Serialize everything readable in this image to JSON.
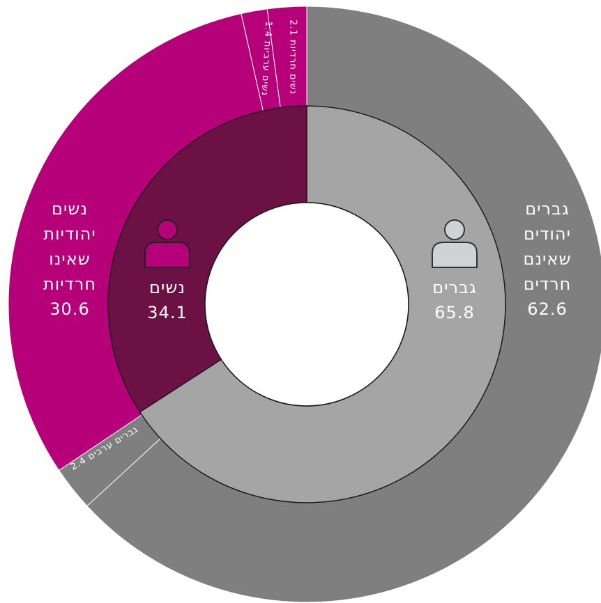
{
  "chart_data": {
    "type": "sunburst",
    "inner": [
      {
        "name": "נשים",
        "value": 34.1,
        "color": "#6b1143"
      },
      {
        "name": "גברים",
        "value": 65.8,
        "color": "#a5a5a5"
      }
    ],
    "outer": [
      {
        "name": "נשים חרדיות",
        "value": 2.1,
        "color": "#b5007a"
      },
      {
        "name": "נשים ערביות",
        "value": 1.4,
        "color": "#b5007a"
      },
      {
        "name": "נשים יהודיות שאינו חרדיות",
        "value": 30.6,
        "color": "#b5007a"
      },
      {
        "name": "גברים ערבים",
        "value": 2.4,
        "color": "#7f7f7f"
      },
      {
        "name": "גברים יהודים שאינם חרדים",
        "value": 62.6,
        "color": "#7f7f7f"
      }
    ]
  }
}
